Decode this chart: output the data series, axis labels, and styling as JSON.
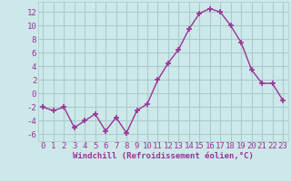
{
  "x": [
    0,
    1,
    2,
    3,
    4,
    5,
    6,
    7,
    8,
    9,
    10,
    11,
    12,
    13,
    14,
    15,
    16,
    17,
    18,
    19,
    20,
    21,
    22,
    23
  ],
  "y": [
    -2,
    -2.5,
    -2,
    -5,
    -4,
    -3,
    -5.5,
    -3.5,
    -5.8,
    -2.5,
    -1.5,
    2,
    4.5,
    6.5,
    9.5,
    11.8,
    12.5,
    12,
    10,
    7.5,
    3.5,
    1.5,
    1.5,
    -1
  ],
  "line_color": "#993399",
  "marker": "+",
  "marker_size": 4,
  "bg_color": "#cce8e8",
  "grid_color": "#aacccc",
  "xlabel": "Windchill (Refroidissement éolien,°C)",
  "xlabel_color": "#993399",
  "tick_color": "#993399",
  "ylim": [
    -7,
    13.5
  ],
  "yticks": [
    -6,
    -4,
    -2,
    0,
    2,
    4,
    6,
    8,
    10,
    12
  ],
  "xticks": [
    0,
    1,
    2,
    3,
    4,
    5,
    6,
    7,
    8,
    9,
    10,
    11,
    12,
    13,
    14,
    15,
    16,
    17,
    18,
    19,
    20,
    21,
    22,
    23
  ],
  "label_fontsize": 6.5,
  "tick_fontsize": 6.5
}
